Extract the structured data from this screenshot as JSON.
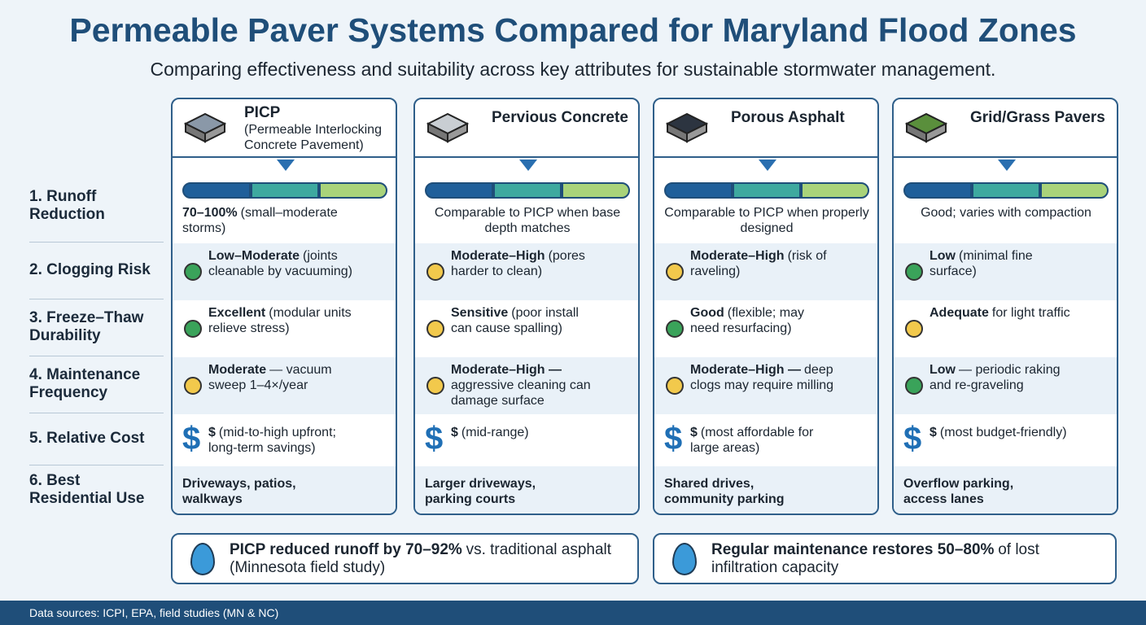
{
  "header": {
    "title": "Permeable Paver Systems Compared for Maryland Flood Zones",
    "subtitle": "Comparing effectiveness and suitability across key attributes for sustainable stormwater management."
  },
  "row_labels": [
    "1. Runoff Reduction",
    "2. Clogging Risk",
    "3. Freeze–Thaw Durability",
    "4. Maintenance Frequency",
    "5. Relative Cost",
    "6. Best Residential Use"
  ],
  "cost_symbol": "$",
  "columns": [
    {
      "name": "PICP",
      "subname": "(Permeable Interlocking Concrete Pavement)",
      "cells": [
        {
          "bold": "70–100%",
          "text": "(small–moderate storms)"
        },
        {
          "bold": "Low–Moderate",
          "text": "(joints cleanable by vacuuming)",
          "dot": "#3aa35a"
        },
        {
          "bold": "Excellent",
          "text": "(modular units relieve stress)",
          "dot": "#3aa35a"
        },
        {
          "bold": "Moderate",
          "text": "— vacuum sweep 1–4×/year",
          "dot": "#f2c94c"
        },
        {
          "bold": "$",
          "text": "(mid-to-high upfront; long-term savings)"
        },
        {
          "bold": "Driveways, patios, walkways"
        }
      ]
    },
    {
      "name": "Pervious Concrete",
      "cells": [
        {
          "text": "Comparable to PICP when base depth matches"
        },
        {
          "bold": "Moderate–High",
          "text": "(pores harder to clean)",
          "dot": "#f2c94c"
        },
        {
          "bold": "Sensitive",
          "text": "(poor install can cause spalling)",
          "dot": "#f2c94c"
        },
        {
          "bold": "Moderate–High —",
          "text": "aggressive cleaning can damage surface",
          "dot": "#f2c94c"
        },
        {
          "bold": "$",
          "text": "(mid-range)"
        },
        {
          "bold": "Larger driveways, parking courts"
        }
      ]
    },
    {
      "name": "Porous Asphalt",
      "cells": [
        {
          "text": "Comparable to PICP when properly designed"
        },
        {
          "bold": "Moderate–High",
          "text": "(risk of raveling)",
          "dot": "#f2c94c"
        },
        {
          "bold": "Good",
          "text": "(flexible; may need resurfacing)",
          "dot": "#3aa35a"
        },
        {
          "bold": "Moderate–High —",
          "text": "deep clogs may require milling",
          "dot": "#f2c94c"
        },
        {
          "bold": "$",
          "text": "(most affordable for large areas)"
        },
        {
          "bold": "Shared drives, community parking"
        }
      ]
    },
    {
      "name": "Grid/Grass Pavers",
      "cells": [
        {
          "text": "Good; varies with compaction"
        },
        {
          "bold": "Low",
          "text": "(minimal fine surface)",
          "dot": "#3aa35a"
        },
        {
          "bold": "Adequate",
          "text": "for light traffic",
          "dot": "#f2c94c"
        },
        {
          "bold": "Low",
          "text": "— periodic raking and re-graveling",
          "dot": "#3aa35a"
        },
        {
          "bold": "$",
          "text": "(most budget-friendly)"
        },
        {
          "bold": "Overflow parking, access lanes"
        }
      ]
    }
  ],
  "callouts": [
    {
      "bold": "PICP reduced runoff by 70–92%",
      "text": "vs. traditional asphalt (Minnesota field study)"
    },
    {
      "bold": "Regular maintenance restores 50–80%",
      "text": "of lost infiltration capacity"
    }
  ],
  "footer": "Data sources: ICPI, EPA, field studies (MN & NC)"
}
